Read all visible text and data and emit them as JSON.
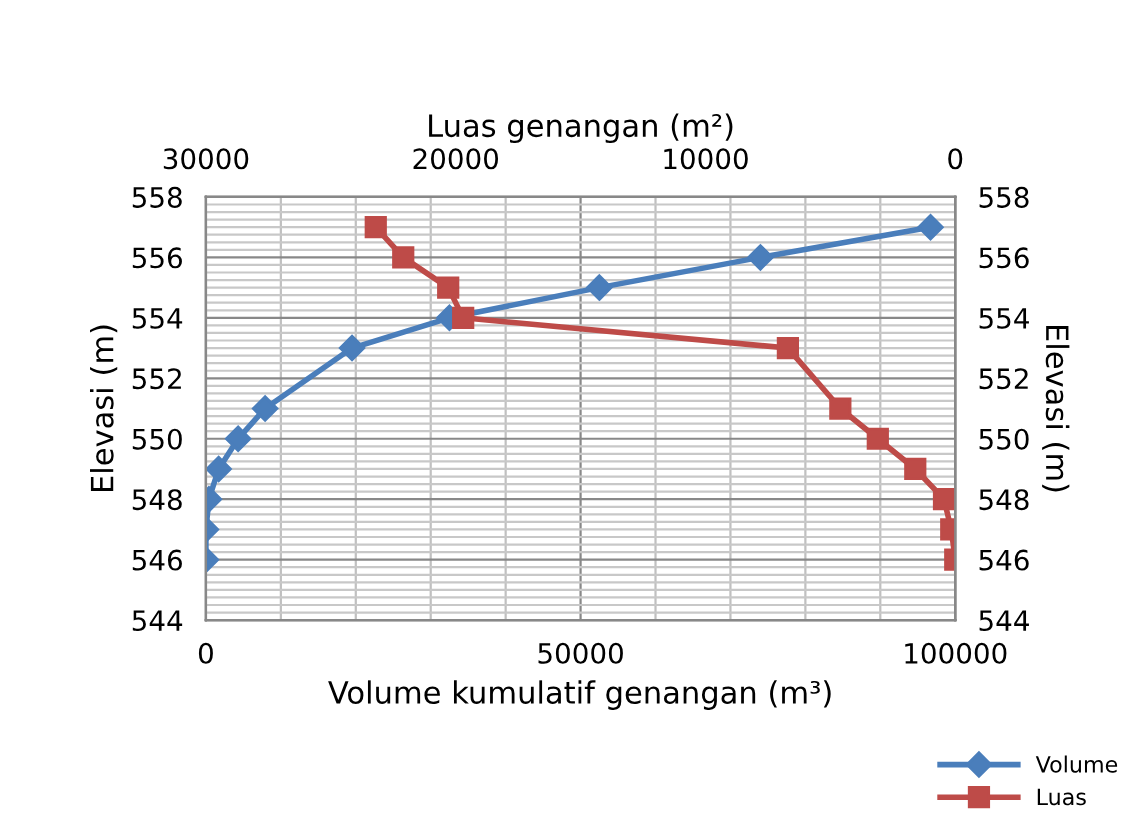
{
  "chart_data": {
    "type": "line",
    "xlabel": "Volume kumulatif genangan (m³)",
    "x2label": "Luas genangan (m²)",
    "ylabel": "Elevasi (m)",
    "y2label": "Elevasi (m)",
    "xlim": [
      0,
      100000
    ],
    "xticks": [
      0,
      50000,
      100000
    ],
    "x2lim": [
      30000,
      0
    ],
    "x2ticks": [
      30000,
      20000,
      10000,
      0
    ],
    "ylim": [
      544,
      558
    ],
    "yticks": [
      544,
      546,
      548,
      550,
      552,
      554,
      556,
      558
    ],
    "y2lim": [
      544,
      558
    ],
    "y2ticks": [
      544,
      546,
      548,
      550,
      552,
      554,
      556,
      558
    ],
    "grid": true,
    "legend": "bottom right",
    "series": [
      {
        "name": "Volume",
        "color": "#4a7ebb",
        "marker": "diamond",
        "x": [
          96700,
          74000,
          52500,
          32500,
          19500,
          7900,
          4300,
          1700,
          400,
          0,
          0
        ],
        "values": [
          557,
          556,
          555,
          554,
          553,
          551,
          550,
          549,
          548,
          547,
          546
        ]
      },
      {
        "name": "Luas",
        "color": "#be4b48",
        "marker": "square",
        "axis": "x2",
        "x": [
          23200,
          22100,
          20300,
          19700,
          6700,
          4600,
          3100,
          1600,
          450,
          160,
          0
        ],
        "values": [
          557,
          556,
          555,
          554,
          553,
          551,
          550,
          549,
          548,
          547,
          546
        ]
      }
    ]
  }
}
